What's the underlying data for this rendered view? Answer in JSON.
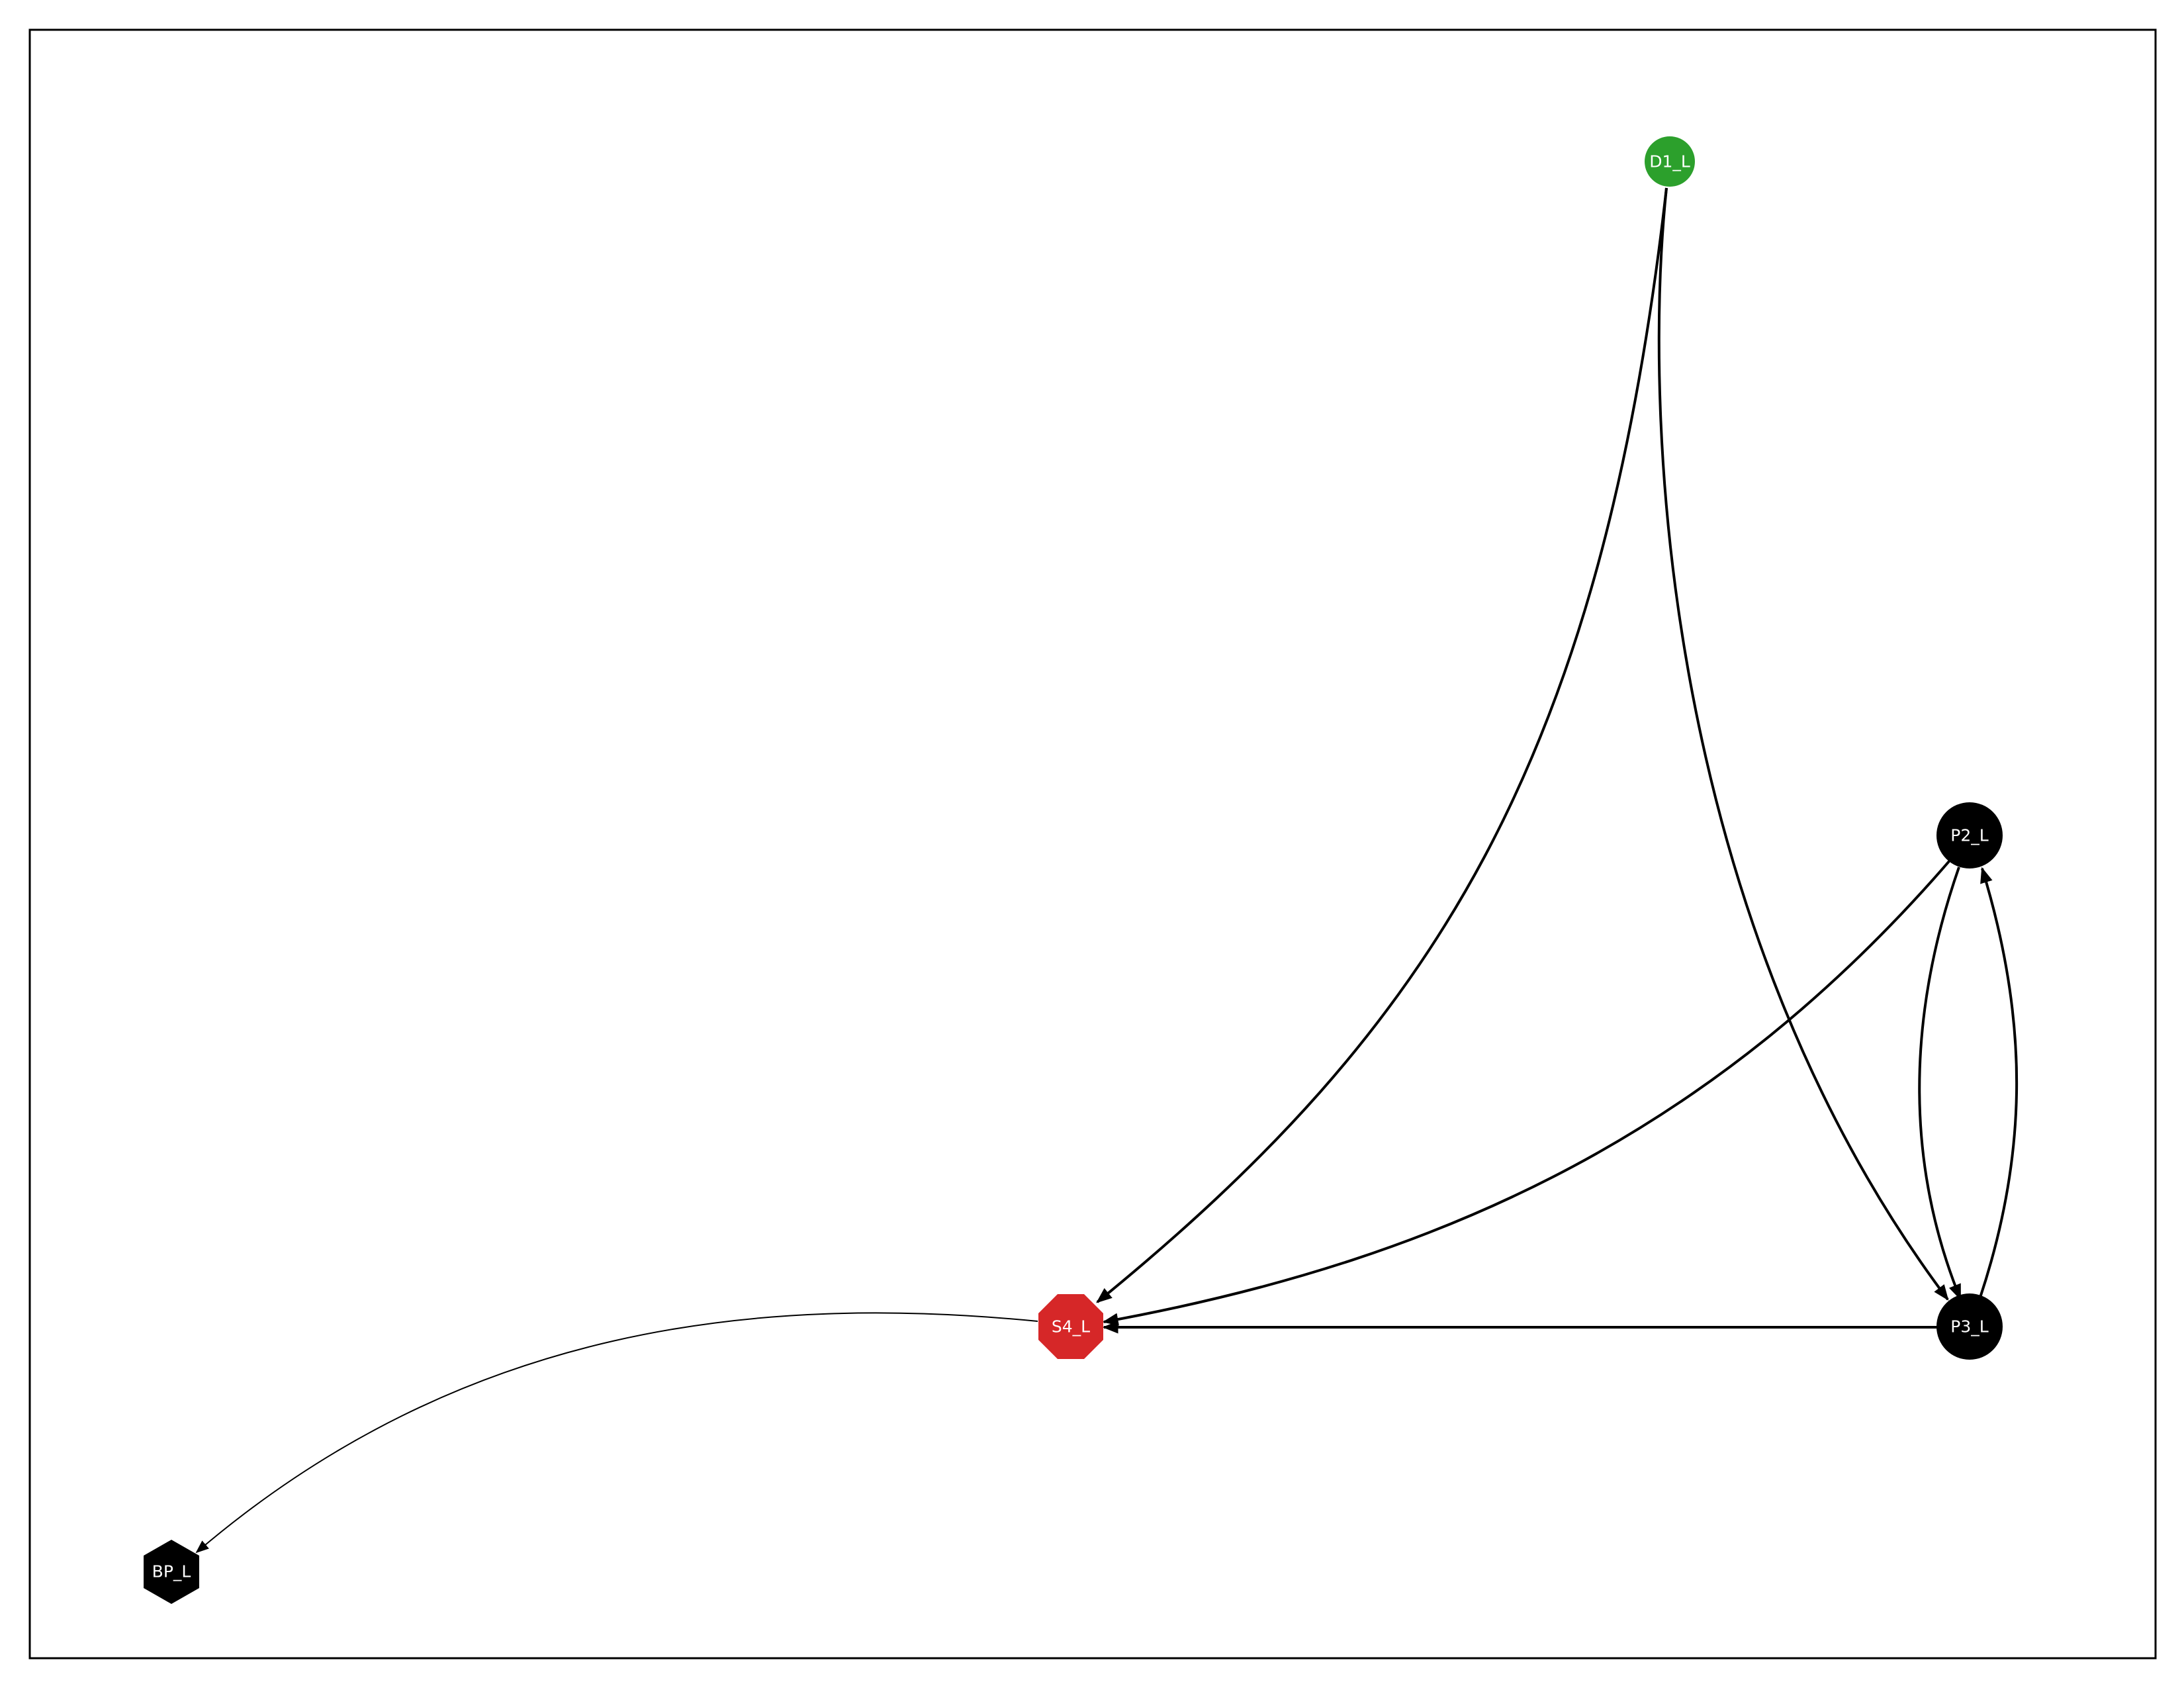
{
  "diagram": {
    "nodes": [
      {
        "id": "D1_L",
        "label": "D1_L",
        "shape": "circle",
        "color": "#2ca02c"
      },
      {
        "id": "P2_L",
        "label": "P2_L",
        "shape": "circle",
        "color": "#000000"
      },
      {
        "id": "P3_L",
        "label": "P3_L",
        "shape": "circle",
        "color": "#000000"
      },
      {
        "id": "S4_L",
        "label": "S4_L",
        "shape": "octagon",
        "color": "#d62728"
      },
      {
        "id": "BP_L",
        "label": "BP_L",
        "shape": "hexagon",
        "color": "#000000"
      }
    ],
    "edges": [
      {
        "from": "D1_L",
        "to": "S4_L"
      },
      {
        "from": "D1_L",
        "to": "P3_L"
      },
      {
        "from": "P2_L",
        "to": "S4_L"
      },
      {
        "from": "P2_L",
        "to": "P3_L"
      },
      {
        "from": "P3_L",
        "to": "P2_L"
      },
      {
        "from": "P3_L",
        "to": "S4_L"
      },
      {
        "from": "S4_L",
        "to": "BP_L"
      }
    ]
  }
}
